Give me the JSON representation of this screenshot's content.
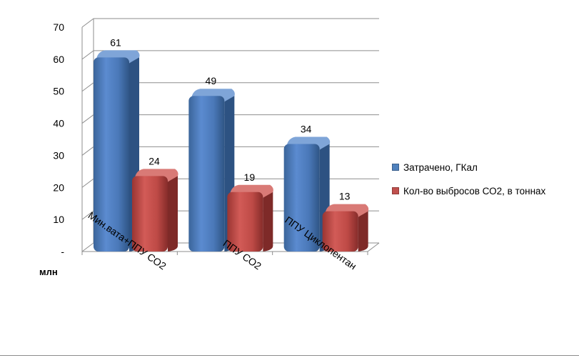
{
  "chart_data": {
    "type": "bar",
    "categories": [
      "Мин.вата+ППУ СО2",
      "ППУ СО2",
      "ППУ Циклопентан"
    ],
    "series": [
      {
        "name": "Затрачено,  ГКал",
        "values": [
          61,
          49,
          34
        ],
        "color": "#4f81bd"
      },
      {
        "name": "Кол-во выбросов СО2, в тоннах",
        "values": [
          24,
          19,
          13
        ],
        "color": "#c0504d"
      }
    ],
    "ylabel": "млн",
    "ylim": [
      0,
      70
    ],
    "yticks": [
      "-",
      "10",
      "20",
      "30",
      "40",
      "50",
      "60",
      "70"
    ],
    "grid": true,
    "legend": "right",
    "style": "3d-clustered-column"
  }
}
